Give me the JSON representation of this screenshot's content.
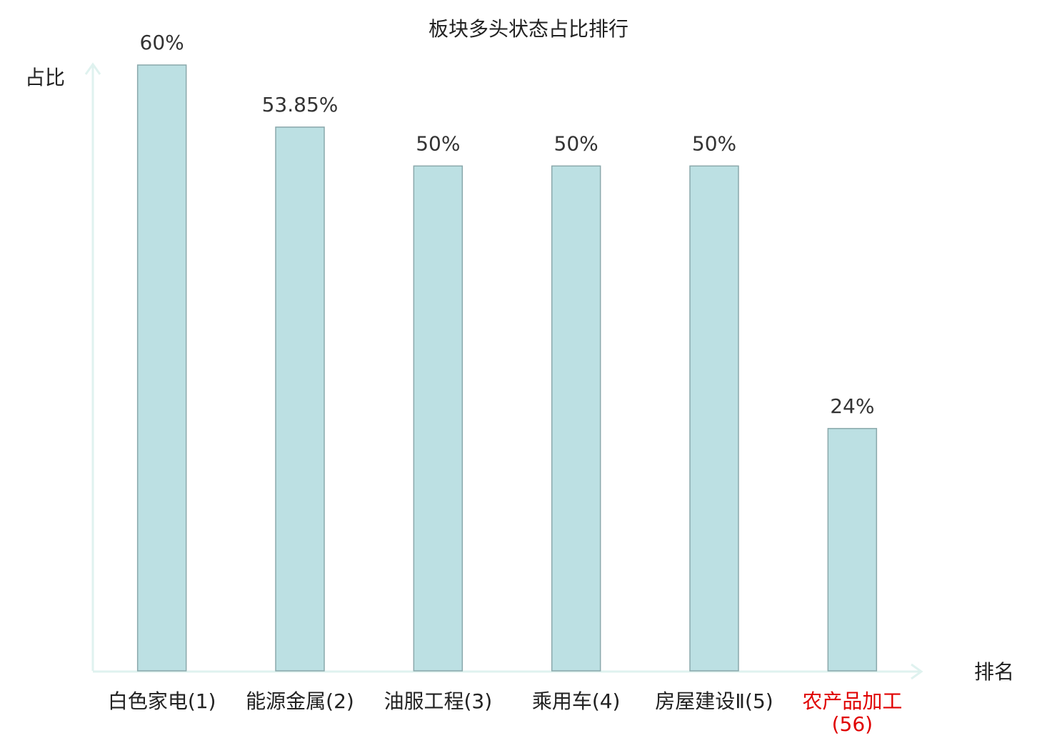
{
  "chart_data": {
    "type": "bar",
    "title": "板块多头状态占比排行",
    "y_label": "占比",
    "x_label": "排名",
    "categories": [
      "白色家电(1)",
      "能源金属(2)",
      "油服工程(3)",
      "乘用车(4)",
      "房屋建设Ⅱ(5)",
      "农产品加工(56)"
    ],
    "category_colors": [
      "#222222",
      "#222222",
      "#222222",
      "#222222",
      "#222222",
      "#e00000"
    ],
    "values": [
      60,
      53.85,
      50,
      50,
      50,
      24
    ],
    "value_labels": [
      "60%",
      "53.85%",
      "50%",
      "50%",
      "50%",
      "24%"
    ],
    "color": "#bce0e3",
    "edge_color": "#8aa8ab",
    "axis_color": "#dff2ef"
  }
}
